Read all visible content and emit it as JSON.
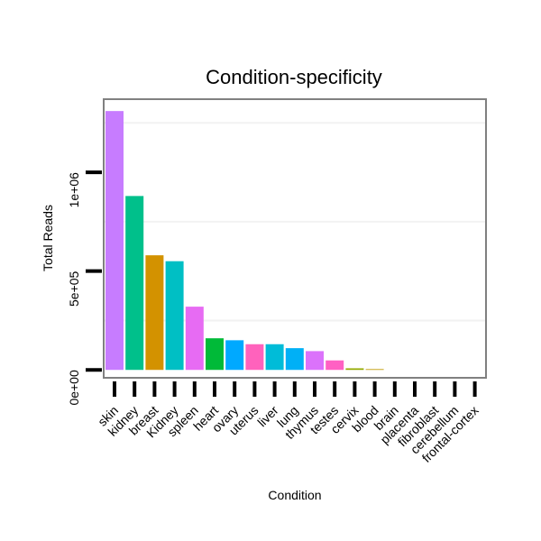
{
  "chart_data": {
    "type": "bar",
    "title": "Condition-specificity",
    "xlabel": "Condition",
    "ylabel": "Total Reads",
    "ylim": [
      -40000,
      1370000
    ],
    "yticks": [
      0,
      500000,
      1000000
    ],
    "ytick_labels": [
      "0e+00",
      "5e+05",
      "1e+06"
    ],
    "minor_gridlines": [
      250000,
      750000,
      1250000
    ],
    "categories": [
      "skin",
      "kidney",
      "breast",
      "Kidney",
      "spleen",
      "heart",
      "ovary",
      "uterus",
      "liver",
      "lung",
      "thymus",
      "testes",
      "cervix",
      "blood",
      "brain",
      "placenta",
      "fibroblast",
      "cerebellum",
      "frontal-cortex"
    ],
    "values": [
      1310000,
      880000,
      580000,
      550000,
      320000,
      160000,
      150000,
      130000,
      130000,
      110000,
      95000,
      48000,
      8000,
      4000,
      0,
      0,
      0,
      0,
      0
    ],
    "colors": [
      "#C77CFF",
      "#00C08B",
      "#D39200",
      "#00BFC4",
      "#E76BF3",
      "#00BA38",
      "#00A9FF",
      "#FF62BC",
      "#00BCD8",
      "#00B0F6",
      "#DB72FB",
      "#FF61C3",
      "#93AA00",
      "#C09B00",
      "#7CAE00",
      "#00C19A",
      "#619CFF",
      "#F8766D",
      "#FF6C91"
    ]
  }
}
